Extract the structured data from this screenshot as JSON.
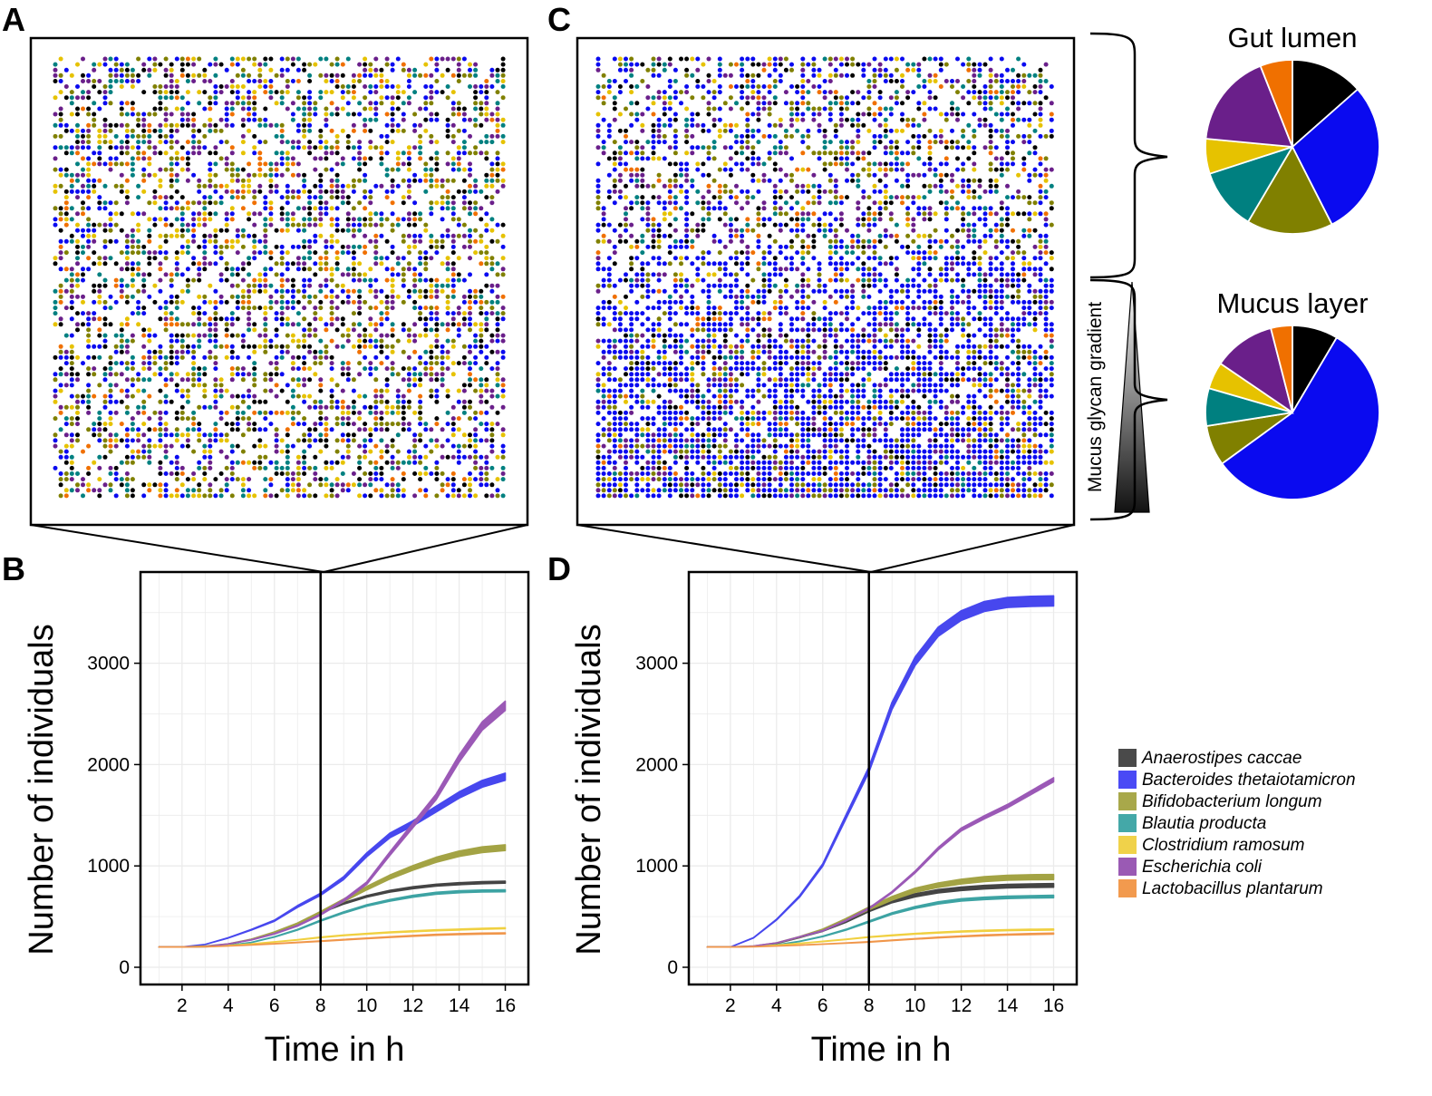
{
  "panel_labels": [
    "A",
    "B",
    "C",
    "D"
  ],
  "species": [
    {
      "name": "Anaerostipes caccae",
      "grid_color": "#000000",
      "line_color": "#444444",
      "legend_color": "#4a4a4a"
    },
    {
      "name": "Bacteroides thetaiotamicron",
      "grid_color": "#0a0af0",
      "line_color": "#4747ee",
      "legend_color": "#4a4af5"
    },
    {
      "name": "Bifidobacterium longum",
      "grid_color": "#808000",
      "line_color": "#a3a344",
      "legend_color": "#a8a84a"
    },
    {
      "name": "Blautia producta",
      "grid_color": "#008080",
      "line_color": "#3da3a3",
      "legend_color": "#44a8a8"
    },
    {
      "name": "Clostridium ramosum",
      "grid_color": "#e6c200",
      "line_color": "#f0d040",
      "legend_color": "#f0d24a"
    },
    {
      "name": "Escherichia coli",
      "grid_color": "#6a1f8a",
      "line_color": "#9b59b6",
      "legend_color": "#9a5ab4"
    },
    {
      "name": "Lactobacillus plantarum",
      "grid_color": "#f07000",
      "line_color": "#f0964a",
      "legend_color": "#f29a4e"
    }
  ],
  "gradient_label": "Mucus glycan gradient",
  "chart_data": [
    {
      "type": "scatter",
      "panel": "A",
      "description_kind": "spatial grid of individual bacteria, uniformly mixed species"
    },
    {
      "type": "line",
      "panel": "B",
      "xlabel": "Time in h",
      "ylabel": "Number of individuals",
      "xticks": [
        2,
        4,
        6,
        8,
        10,
        12,
        14,
        16
      ],
      "yticks": [
        0,
        1000,
        2000,
        3000
      ],
      "xlim": [
        0.2,
        17
      ],
      "ylim": [
        -170,
        3900
      ],
      "marker_x": 8,
      "x": [
        1,
        2,
        3,
        4,
        5,
        6,
        7,
        8,
        9,
        10,
        11,
        12,
        13,
        14,
        15,
        16
      ],
      "series": [
        {
          "name": "Anaerostipes caccae",
          "band": 10,
          "values": [
            200,
            200,
            205,
            225,
            275,
            340,
            420,
            540,
            630,
            700,
            750,
            785,
            810,
            825,
            835,
            840
          ]
        },
        {
          "name": "Bacteroides thetaiotamicron",
          "band": 35,
          "values": [
            200,
            200,
            225,
            290,
            370,
            460,
            600,
            720,
            880,
            1110,
            1300,
            1420,
            1560,
            1700,
            1810,
            1880
          ]
        },
        {
          "name": "Bifidobacterium longum",
          "band": 28,
          "values": [
            200,
            200,
            210,
            230,
            275,
            345,
            430,
            540,
            660,
            780,
            890,
            980,
            1060,
            1120,
            1160,
            1180
          ]
        },
        {
          "name": "Blautia producta",
          "band": 10,
          "values": [
            200,
            200,
            202,
            215,
            245,
            300,
            370,
            460,
            540,
            610,
            660,
            700,
            730,
            745,
            752,
            755
          ]
        },
        {
          "name": "Clostridium ramosum",
          "band": 5,
          "values": [
            200,
            200,
            205,
            215,
            230,
            250,
            270,
            295,
            315,
            330,
            345,
            355,
            365,
            372,
            380,
            385
          ]
        },
        {
          "name": "Escherichia coli",
          "band": 45,
          "values": [
            200,
            200,
            205,
            230,
            270,
            330,
            410,
            520,
            660,
            830,
            1120,
            1400,
            1680,
            2060,
            2380,
            2580
          ]
        },
        {
          "name": "Lactobacillus plantarum",
          "band": 5,
          "values": [
            200,
            200,
            203,
            210,
            220,
            232,
            245,
            258,
            272,
            285,
            298,
            310,
            320,
            327,
            332,
            335
          ]
        }
      ]
    },
    {
      "type": "scatter",
      "panel": "C",
      "description_kind": "spatial grid of individual bacteria, Bacteroides enriched toward the bottom (mucus layer)"
    },
    {
      "type": "line",
      "panel": "D",
      "xlabel": "Time in h",
      "ylabel": "Number of individuals",
      "xticks": [
        2,
        4,
        6,
        8,
        10,
        12,
        14,
        16
      ],
      "yticks": [
        0,
        1000,
        2000,
        3000
      ],
      "xlim": [
        0.2,
        17
      ],
      "ylim": [
        -170,
        3900
      ],
      "marker_x": 8,
      "x": [
        1,
        2,
        3,
        4,
        5,
        6,
        7,
        8,
        9,
        10,
        11,
        12,
        13,
        14,
        15,
        16
      ],
      "series": [
        {
          "name": "Anaerostipes caccae",
          "band": 18,
          "values": [
            200,
            200,
            205,
            235,
            295,
            360,
            450,
            560,
            650,
            710,
            750,
            775,
            790,
            800,
            805,
            808
          ]
        },
        {
          "name": "Bacteroides thetaiotamicron",
          "band": 50,
          "values": [
            200,
            200,
            290,
            470,
            700,
            1010,
            1480,
            1950,
            2580,
            3020,
            3310,
            3470,
            3560,
            3600,
            3610,
            3615
          ]
        },
        {
          "name": "Bifidobacterium longum",
          "band": 25,
          "values": [
            200,
            200,
            210,
            240,
            300,
            370,
            470,
            580,
            680,
            760,
            810,
            845,
            870,
            883,
            888,
            890
          ]
        },
        {
          "name": "Blautia producta",
          "band": 12,
          "values": [
            200,
            200,
            205,
            220,
            255,
            305,
            370,
            450,
            530,
            590,
            635,
            665,
            680,
            690,
            695,
            698
          ]
        },
        {
          "name": "Clostridium ramosum",
          "band": 5,
          "values": [
            200,
            200,
            205,
            218,
            235,
            255,
            275,
            298,
            315,
            330,
            342,
            352,
            360,
            366,
            370,
            372
          ]
        },
        {
          "name": "Escherichia coli",
          "band": 20,
          "values": [
            200,
            200,
            210,
            240,
            300,
            360,
            460,
            580,
            740,
            940,
            1170,
            1360,
            1480,
            1590,
            1720,
            1850
          ]
        },
        {
          "name": "Lactobacillus plantarum",
          "band": 5,
          "values": [
            200,
            200,
            203,
            210,
            218,
            228,
            238,
            250,
            265,
            280,
            293,
            305,
            315,
            322,
            328,
            332
          ]
        }
      ]
    },
    {
      "type": "pie",
      "panel": "C-lumen",
      "title": "Gut lumen",
      "slices": [
        {
          "name": "Anaerostipes caccae",
          "value": 13.5
        },
        {
          "name": "Bacteroides thetaiotamicron",
          "value": 29
        },
        {
          "name": "Bifidobacterium longum",
          "value": 16
        },
        {
          "name": "Blautia producta",
          "value": 11.5
        },
        {
          "name": "Clostridium ramosum",
          "value": 6.5
        },
        {
          "name": "Escherichia coli",
          "value": 17.5
        },
        {
          "name": "Lactobacillus plantarum",
          "value": 6
        }
      ]
    },
    {
      "type": "pie",
      "panel": "C-mucus",
      "title": "Mucus layer",
      "slices": [
        {
          "name": "Anaerostipes caccae",
          "value": 8.5
        },
        {
          "name": "Bacteroides thetaiotamicron",
          "value": 56.5
        },
        {
          "name": "Bifidobacterium longum",
          "value": 7.5
        },
        {
          "name": "Blautia producta",
          "value": 7
        },
        {
          "name": "Clostridium ramosum",
          "value": 5
        },
        {
          "name": "Escherichia coli",
          "value": 11.5
        },
        {
          "name": "Lactobacillus plantarum",
          "value": 4
        }
      ]
    }
  ]
}
